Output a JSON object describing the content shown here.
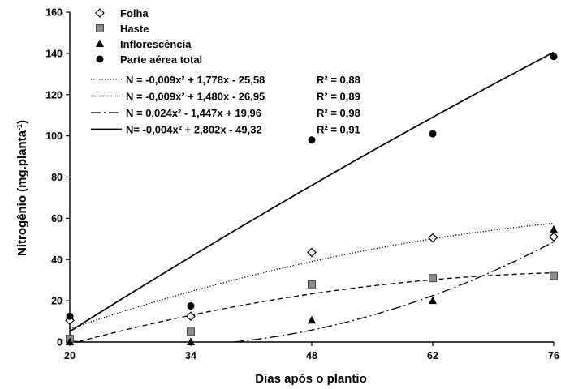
{
  "chart_data": {
    "type": "scatter",
    "xlabel": "Dias após o plantio",
    "ylabel": "Nitrogênio (mg.planta",
    "ylabel_sup": "-1",
    "ylabel_close": ")",
    "x_ticks": [
      "20",
      "34",
      "48",
      "62",
      "76"
    ],
    "y_ticks": [
      "0",
      "20",
      "40",
      "60",
      "80",
      "100",
      "120",
      "140",
      "160"
    ],
    "xlim": [
      20,
      76
    ],
    "ylim": [
      0,
      160
    ],
    "legend_position": "top-left",
    "series": [
      {
        "name": "Folha",
        "marker": "diamond-open",
        "line_style": "dotted",
        "x": [
          20,
          34,
          48,
          62,
          76
        ],
        "y": [
          10.5,
          12.5,
          43.5,
          50.5,
          51
        ],
        "equation": "N = -0,009x² + 1,778x - 25,58",
        "r2": "R² = 0,88",
        "coef": [
          -0.009,
          1.778,
          -25.58
        ]
      },
      {
        "name": "Haste",
        "marker": "square",
        "line_style": "dashed",
        "x": [
          20,
          34,
          48,
          62,
          76
        ],
        "y": [
          1.5,
          5,
          28,
          31,
          32
        ],
        "equation": "N = -0,009x² + 1,480x - 26,95",
        "r2": "R² = 0,89",
        "coef": [
          -0.009,
          1.48,
          -26.95
        ]
      },
      {
        "name": "Inflorescência",
        "marker": "triangle",
        "line_style": "dashdot",
        "x": [
          20,
          34,
          48,
          62,
          76
        ],
        "y": [
          0,
          0,
          10.5,
          20,
          54.5
        ],
        "equation": "N = 0,024x² - 1,447x + 19,96",
        "r2": "R² = 0,98",
        "coef": [
          0.024,
          -1.447,
          19.96
        ]
      },
      {
        "name": "Parte aérea total",
        "marker": "circle",
        "line_style": "solid",
        "x": [
          20,
          34,
          48,
          62,
          76
        ],
        "y": [
          12.5,
          17.5,
          98,
          101,
          138.5
        ],
        "equation": "N= -0,004x² + 2,802x - 49,32",
        "r2": "R² = 0,91",
        "coef": [
          -0.004,
          2.802,
          -49.32
        ]
      }
    ]
  }
}
